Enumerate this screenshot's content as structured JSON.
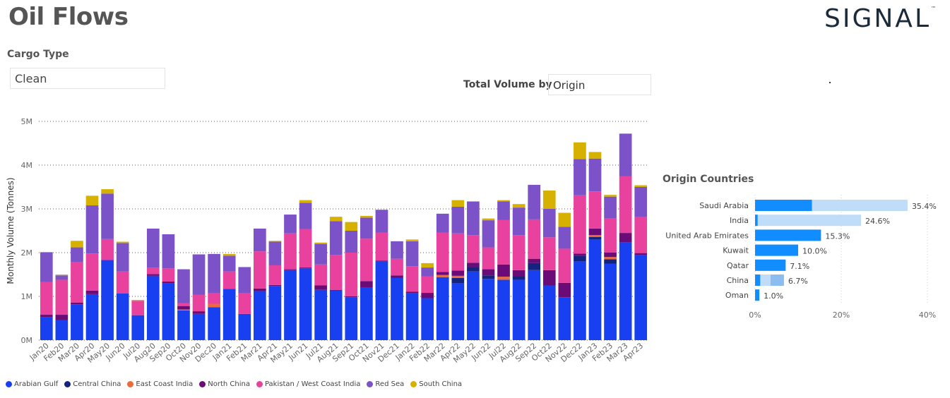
{
  "header": {
    "title": "Oil Flows",
    "logo": "SIGNAL",
    "logo_mark": "™"
  },
  "filters": {
    "cargo_type_label": "Cargo Type",
    "cargo_type_value": "Clean",
    "total_volume_label": "Total Volume by",
    "total_volume_value": "Origin"
  },
  "chart_data": [
    {
      "type": "bar",
      "stacked": true,
      "title": "",
      "ylabel": "Monthly Volume (Tonnes)",
      "xlabel": "",
      "ylim": [
        0,
        5000000
      ],
      "yticks": [
        0,
        1000000,
        2000000,
        3000000,
        4000000,
        5000000
      ],
      "ytick_labels": [
        "0M",
        "1M",
        "2M",
        "3M",
        "4M",
        "5M"
      ],
      "grid": true,
      "legend_position": "bottom-left",
      "categories": [
        "Jan20",
        "Feb20",
        "Mar20",
        "Apr20",
        "May20",
        "Jun20",
        "Jul20",
        "Aug20",
        "Sep20",
        "Oct20",
        "Nov20",
        "Dec20",
        "Jan21",
        "Feb21",
        "Mar21",
        "Apr21",
        "May21",
        "Jun21",
        "Jul21",
        "Aug21",
        "Sep21",
        "Oct21",
        "Nov21",
        "Dec21",
        "Jan22",
        "Feb22",
        "Mar22",
        "Apr22",
        "May22",
        "Jun22",
        "Jul22",
        "Aug22",
        "Sep22",
        "Oct22",
        "Nov22",
        "Dec22",
        "Jan23",
        "Feb23",
        "Mar23",
        "Apr23"
      ],
      "series": [
        {
          "name": "Arabian Gulf",
          "color": "#1940f0",
          "values": [
            0.52,
            0.46,
            0.82,
            1.05,
            1.83,
            1.07,
            0.57,
            1.47,
            1.3,
            0.68,
            0.6,
            0.75,
            1.17,
            0.6,
            1.12,
            1.24,
            1.6,
            1.64,
            1.15,
            1.13,
            0.98,
            1.2,
            1.8,
            1.42,
            1.07,
            0.96,
            1.44,
            1.3,
            1.57,
            1.4,
            1.38,
            1.38,
            1.6,
            1.25,
            0.98,
            1.8,
            2.3,
            1.75,
            2.23,
            1.94
          ]
        },
        {
          "name": "Central China",
          "color": "#16237e",
          "values": [
            0,
            0,
            0,
            0,
            0,
            0,
            0,
            0,
            0,
            0,
            0,
            0,
            0,
            0,
            0,
            0,
            0,
            0,
            0,
            0,
            0,
            0,
            0,
            0,
            0,
            0,
            0,
            0.12,
            0.1,
            0.08,
            0,
            0.08,
            0.16,
            0,
            0,
            0.13,
            0.06,
            0.1,
            0,
            0
          ]
        },
        {
          "name": "East Coast India",
          "color": "#ea6a3c",
          "values": [
            0,
            0,
            0,
            0,
            0,
            0,
            0,
            0,
            0,
            0.02,
            0,
            0.08,
            0,
            0,
            0,
            0,
            0,
            0,
            0,
            0,
            0,
            0,
            0,
            0,
            0,
            0,
            0.05,
            0.05,
            0,
            0,
            0.07,
            0,
            0,
            0,
            0,
            0,
            0.04,
            0.05,
            0,
            0
          ]
        },
        {
          "name": "North China",
          "color": "#6b0b78",
          "values": [
            0.06,
            0.12,
            0.04,
            0.08,
            0,
            0,
            0,
            0.04,
            0.04,
            0.08,
            0.06,
            0,
            0,
            0,
            0.06,
            0.02,
            0.02,
            0.02,
            0.1,
            0.02,
            0.02,
            0.15,
            0.02,
            0.06,
            0.04,
            0.12,
            0.07,
            0.12,
            0.1,
            0.14,
            0.28,
            0.14,
            0.1,
            0.35,
            0.33,
            0.05,
            0.15,
            0.1,
            0.22,
            0.05
          ]
        },
        {
          "name": "Pakistan / West Coast India",
          "color": "#e8419e",
          "values": [
            0.75,
            0.8,
            0.92,
            0.85,
            0.48,
            0.5,
            0.33,
            0.15,
            0.3,
            0.06,
            0.38,
            0.24,
            0.4,
            0.47,
            0.85,
            0.45,
            0.82,
            0.88,
            0.48,
            0.8,
            1.0,
            0.97,
            0.64,
            0.38,
            0.58,
            0.38,
            0.9,
            0.85,
            0.63,
            0.5,
            1.02,
            0.8,
            0.9,
            0.75,
            0.78,
            1.33,
            0.85,
            0.78,
            1.3,
            0.82
          ]
        },
        {
          "name": "Red Sea",
          "color": "#7c52c8",
          "values": [
            0.68,
            0.1,
            0.34,
            1.1,
            1.04,
            0.65,
            0,
            0.89,
            0.78,
            0.78,
            0.92,
            0.9,
            0.36,
            0.6,
            0.52,
            0.54,
            0.43,
            0.6,
            0.47,
            0.77,
            0.5,
            0.48,
            0.52,
            0.4,
            0.57,
            0.2,
            0.43,
            0.61,
            0.77,
            0.62,
            0.42,
            0.63,
            0.79,
            0.65,
            0.5,
            0.83,
            0.75,
            0.5,
            0.97,
            0.69
          ]
        },
        {
          "name": "South China",
          "color": "#d6b100",
          "values": [
            0,
            0.02,
            0.15,
            0.22,
            0.1,
            0.03,
            0.02,
            0,
            0,
            0,
            0,
            0,
            0.04,
            0,
            0,
            0.02,
            0,
            0.06,
            0.03,
            0.1,
            0.2,
            0.04,
            0,
            0,
            0.04,
            0.1,
            0,
            0.15,
            0,
            0.04,
            0.03,
            0.08,
            0,
            0.42,
            0.32,
            0.38,
            0.15,
            0.04,
            0,
            0.04
          ]
        }
      ]
    },
    {
      "type": "bar",
      "orientation": "horizontal",
      "title": "Origin Countries",
      "xlim": [
        0,
        40
      ],
      "xticks": [
        0,
        20,
        40
      ],
      "xtick_labels": [
        "0%",
        "20%",
        "40%"
      ],
      "categories": [
        "Saudi Arabia",
        "India",
        "United Arab Emirates",
        "Kuwait",
        "Qatar",
        "China",
        "Oman"
      ],
      "value_labels": [
        "35.4%",
        "24.6%",
        "15.3%",
        "10.0%",
        "7.1%",
        "6.7%",
        "1.0%"
      ],
      "values": [
        35.4,
        24.6,
        15.3,
        10.0,
        7.1,
        6.7,
        1.0
      ],
      "highlighted_values": [
        13.2,
        0.6,
        15.3,
        10.0,
        7.1,
        1.2,
        1.0
      ],
      "colors": {
        "highlight": "#118dff",
        "total": "#bfdcf8",
        "china_secondary": "#8cbcf0"
      }
    }
  ]
}
